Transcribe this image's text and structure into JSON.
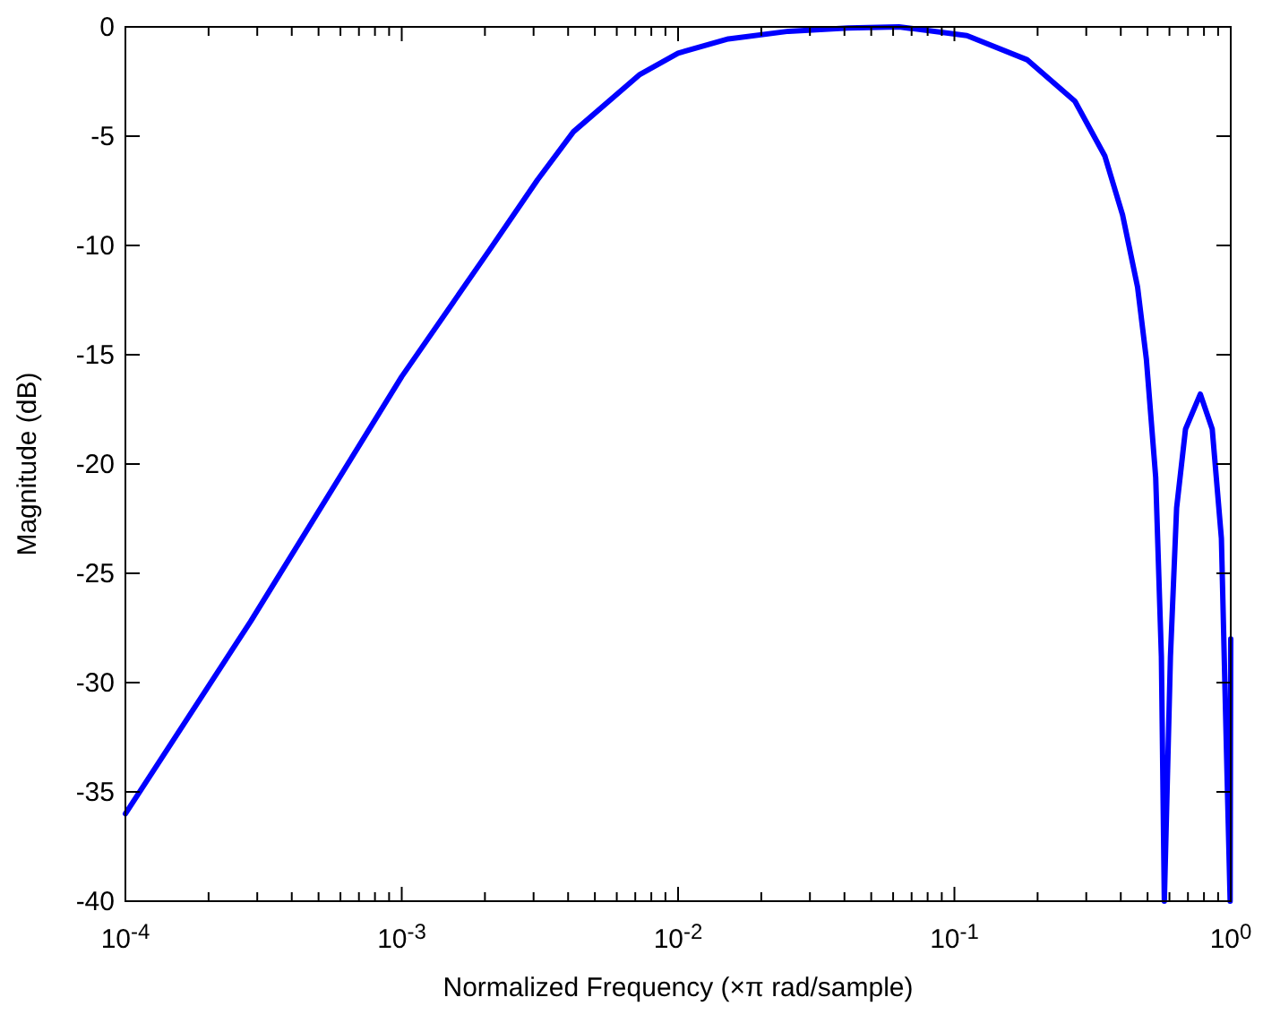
{
  "chart_data": {
    "type": "line",
    "xlabel": "Normalized Frequency (×π rad/sample)",
    "ylabel": "Magnitude (dB)",
    "log": "x",
    "grid": false,
    "marker": "none",
    "line_style": "solid",
    "x": [
      0.0001,
      0.000284,
      0.001,
      0.00208,
      0.0031,
      0.00418,
      0.00723,
      0.01,
      0.0152,
      0.0251,
      0.0412,
      0.063,
      0.111,
      0.183,
      0.273,
      0.35,
      0.406,
      0.46,
      0.495,
      0.535,
      0.561,
      0.575,
      0.605,
      0.637,
      0.686,
      0.776,
      0.857,
      0.925,
      0.97,
      0.995,
      1
    ],
    "series": [
      {
        "color": "#0000ff",
        "values": [
          -36,
          -27.2,
          -16,
          -10.2,
          -7,
          -4.8,
          -2.2,
          -1.2,
          -0.55,
          -0.2,
          -0.05,
          0,
          -0.4,
          -1.5,
          -3.4,
          -5.9,
          -8.6,
          -11.9,
          -15.2,
          -20.6,
          -28.8,
          -40,
          -28.8,
          -22,
          -18.4,
          -16.8,
          -18.4,
          -23.4,
          -34.3,
          -40,
          -28
        ]
      }
    ],
    "xlim": [
      0.0001,
      1
    ],
    "xticks": [
      {
        "value": 0.0001,
        "label": "10$^{-4}$"
      },
      {
        "value": 0.0002,
        "label": null
      },
      {
        "value": 0.0003,
        "label": null
      },
      {
        "value": 0.0004,
        "label": null
      },
      {
        "value": 0.0005,
        "label": null
      },
      {
        "value": 0.0006,
        "label": null
      },
      {
        "value": 0.0007,
        "label": null
      },
      {
        "value": 0.0008,
        "label": null
      },
      {
        "value": 0.0009,
        "label": null
      },
      {
        "value": 0.001,
        "label": "10$^{-3}$"
      },
      {
        "value": 0.002,
        "label": null
      },
      {
        "value": 0.003,
        "label": null
      },
      {
        "value": 0.004,
        "label": null
      },
      {
        "value": 0.005,
        "label": null
      },
      {
        "value": 0.006,
        "label": null
      },
      {
        "value": 0.007,
        "label": null
      },
      {
        "value": 0.008,
        "label": null
      },
      {
        "value": 0.009,
        "label": null
      },
      {
        "value": 0.01,
        "label": "10$^{-2}$"
      },
      {
        "value": 0.02,
        "label": null
      },
      {
        "value": 0.03,
        "label": null
      },
      {
        "value": 0.04,
        "label": null
      },
      {
        "value": 0.05,
        "label": null
      },
      {
        "value": 0.06,
        "label": null
      },
      {
        "value": 0.07,
        "label": null
      },
      {
        "value": 0.08,
        "label": null
      },
      {
        "value": 0.09,
        "label": null
      },
      {
        "value": 0.1,
        "label": "10$^{-1}$"
      },
      {
        "value": 0.2,
        "label": null
      },
      {
        "value": 0.3,
        "label": null
      },
      {
        "value": 0.4,
        "label": null
      },
      {
        "value": 0.5,
        "label": null
      },
      {
        "value": 0.6,
        "label": null
      },
      {
        "value": 0.7,
        "label": null
      },
      {
        "value": 0.8,
        "label": null
      },
      {
        "value": 0.9,
        "label": null
      },
      {
        "value": 1,
        "label": "10$^{0}$"
      }
    ],
    "ylim": [
      -40,
      0
    ],
    "yticks": [
      -40,
      -35,
      -30,
      -25,
      -20,
      -15,
      -10,
      -5,
      0
    ]
  }
}
